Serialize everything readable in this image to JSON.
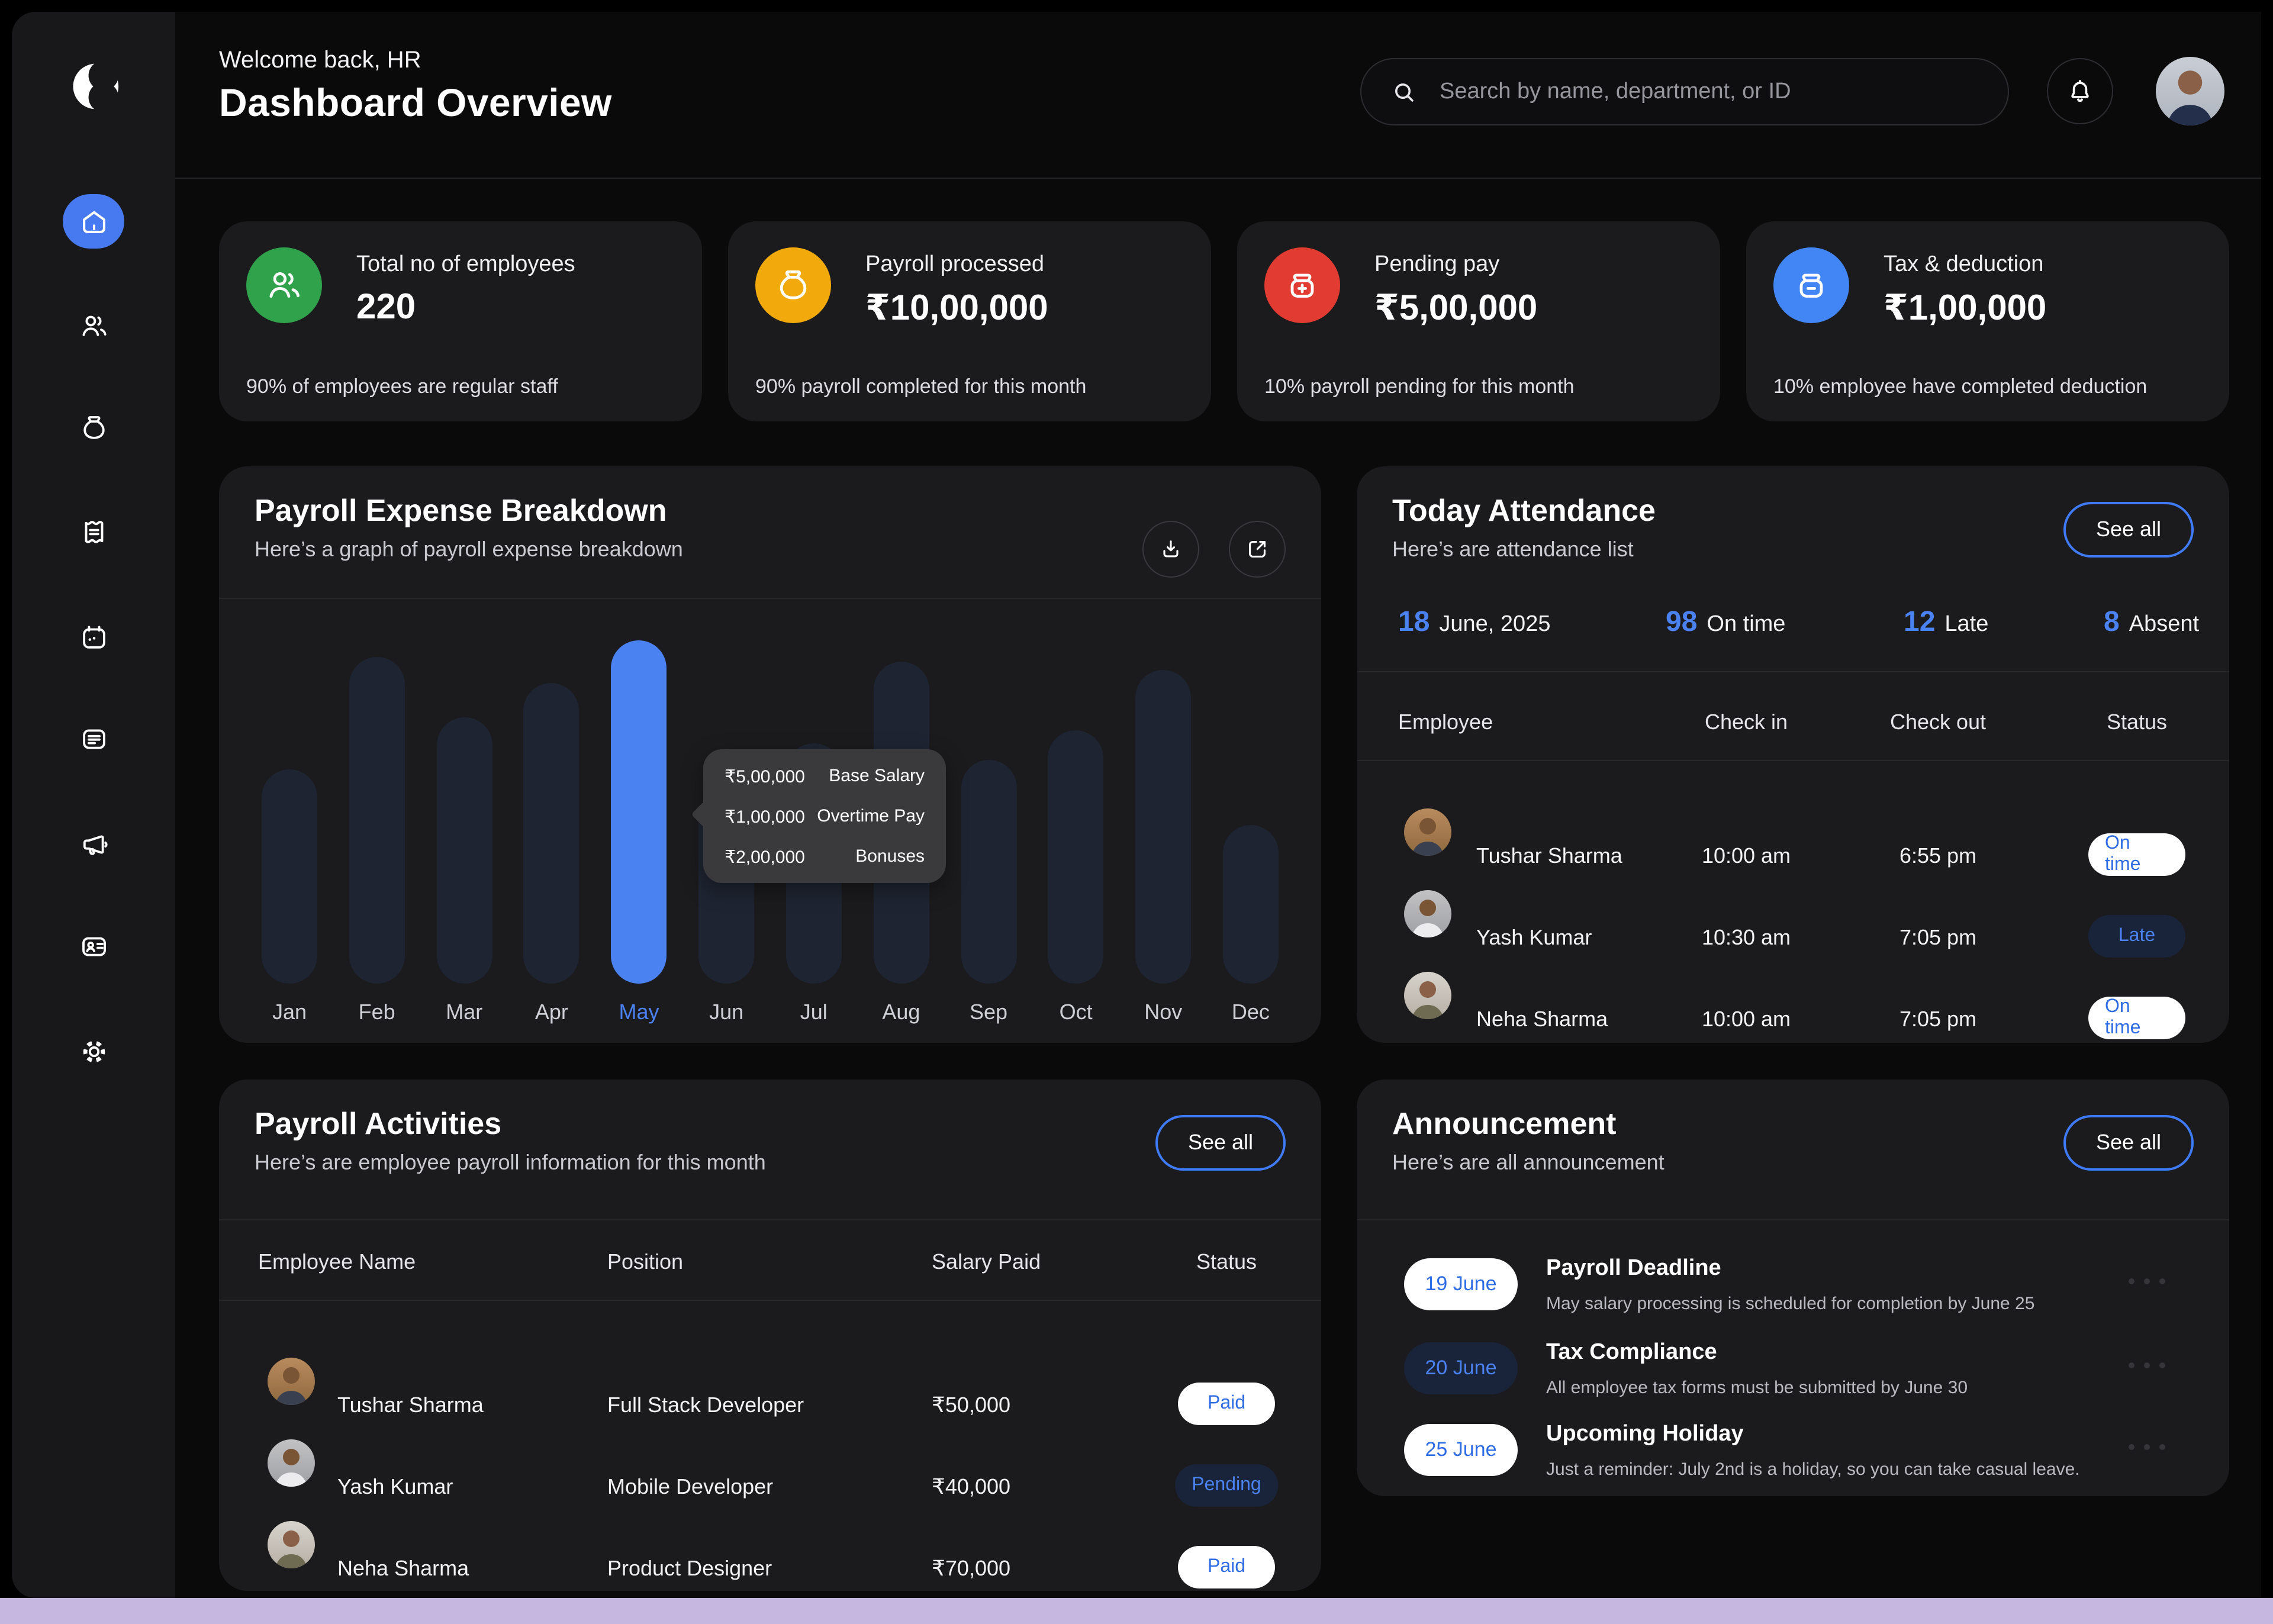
{
  "colors": {
    "accent": "#4B82F2",
    "bar": "#1E2431",
    "bar_active": "#4B82F2",
    "pill_light_bg": "#FFFFFF",
    "pill_light_text": "#2E6CE5",
    "pill_dark_bg": "#19243A",
    "card_bg": "#1B1B1D",
    "sidebar_bg": "#18181A",
    "green": "#31A24C",
    "yellow": "#F2A90B",
    "red": "#E23B32",
    "blue": "#4285F4",
    "bottom_strip": "#C5B7E0"
  },
  "sidebar": {
    "items": [
      "home",
      "employees",
      "payroll",
      "receipt",
      "calendar",
      "report",
      "announcement",
      "id-card",
      "settings"
    ],
    "active": "home"
  },
  "header": {
    "welcome": "Welcome back, HR",
    "title": "Dashboard Overview",
    "search_placeholder": "Search by name, department, or ID"
  },
  "stat_cards": [
    {
      "icon": "employees-icon",
      "color": "#31A24C",
      "label": "Total no of employees",
      "value": "220",
      "footnote": "90% of employees are regular staff"
    },
    {
      "icon": "money-bag-icon",
      "color": "#F2A90B",
      "label": "Payroll processed",
      "value": "₹10,00,000",
      "footnote": "90% payroll completed for this month"
    },
    {
      "icon": "pending-pay-icon",
      "color": "#E23B32",
      "label": "Pending pay",
      "value": "₹5,00,000",
      "footnote": "10% payroll pending for this month"
    },
    {
      "icon": "tax-deduction-icon",
      "color": "#4285F4",
      "label": "Tax & deduction",
      "value": "₹1,00,000",
      "footnote": "10% employee have completed deduction"
    }
  ],
  "payroll_chart": {
    "title": "Payroll Expense Breakdown",
    "subtitle": "Here’s a graph of payroll expense breakdown",
    "buttons": [
      "download",
      "open-external"
    ]
  },
  "chart_data": {
    "type": "bar",
    "title": "Payroll Expense Breakdown",
    "categories": [
      "Jan",
      "Feb",
      "Mar",
      "Apr",
      "May",
      "Jun",
      "Jul",
      "Aug",
      "Sep",
      "Oct",
      "Nov",
      "Dec"
    ],
    "values": [
      500000,
      760000,
      620000,
      700000,
      800000,
      440000,
      560000,
      750000,
      520000,
      590000,
      730000,
      370000
    ],
    "values_note": "₹, estimated from bar heights; no y-axis shown",
    "highlighted": "May",
    "xlabel": "",
    "ylabel": "",
    "ylim": [
      0,
      800000
    ],
    "grid": false,
    "legend": false,
    "tooltip": {
      "month": "May",
      "rows": [
        {
          "value": "₹5,00,000",
          "label": "Base Salary"
        },
        {
          "value": "₹1,00,000",
          "label": "Overtime Pay"
        },
        {
          "value": "₹2,00,000",
          "label": "Bonuses"
        }
      ]
    }
  },
  "attendance": {
    "title": "Today Attendance",
    "subtitle": "Here’s are attendance list",
    "see_all": "See all",
    "date": {
      "day": "18",
      "label": "June, 2025"
    },
    "stats": [
      {
        "value": "98",
        "label": "On time"
      },
      {
        "value": "12",
        "label": "Late"
      },
      {
        "value": "8",
        "label": "Absent"
      }
    ],
    "columns": [
      "Employee",
      "Check in",
      "Check out",
      "Status"
    ],
    "rows": [
      {
        "name": "Tushar Sharma",
        "check_in": "10:00 am",
        "check_out": "6:55 pm",
        "status": "On time",
        "variant": "light"
      },
      {
        "name": "Yash Kumar",
        "check_in": "10:30 am",
        "check_out": "7:05 pm",
        "status": "Late",
        "variant": "dark"
      },
      {
        "name": "Neha Sharma",
        "check_in": "10:00 am",
        "check_out": "7:05 pm",
        "status": "On time",
        "variant": "light"
      }
    ]
  },
  "payroll_activities": {
    "title": "Payroll Activities",
    "subtitle": "Here’s are employee payroll information for this month",
    "see_all": "See all",
    "columns": [
      "Employee Name",
      "Position",
      "Salary Paid",
      "Status"
    ],
    "rows": [
      {
        "name": "Tushar Sharma",
        "position": "Full Stack Developer",
        "salary": "₹50,000",
        "status": "Paid",
        "variant": "light"
      },
      {
        "name": "Yash Kumar",
        "position": "Mobile Developer",
        "salary": "₹40,000",
        "status": "Pending",
        "variant": "dark"
      },
      {
        "name": "Neha Sharma",
        "position": "Product Designer",
        "salary": "₹70,000",
        "status": "Paid",
        "variant": "light"
      }
    ]
  },
  "announcements": {
    "title": "Announcement",
    "subtitle": "Here’s are all announcement",
    "see_all": "See all",
    "items": [
      {
        "date": "19 June",
        "variant": "light",
        "title": "Payroll Deadline",
        "description": "May salary processing is scheduled for completion by June 25"
      },
      {
        "date": "20 June",
        "variant": "dark",
        "title": "Tax Compliance",
        "description": "All employee tax forms must be submitted by June 30"
      },
      {
        "date": "25 June",
        "variant": "light",
        "title": "Upcoming Holiday",
        "description": "Just a reminder: July 2nd is a holiday, so you can take casual leave."
      }
    ]
  }
}
